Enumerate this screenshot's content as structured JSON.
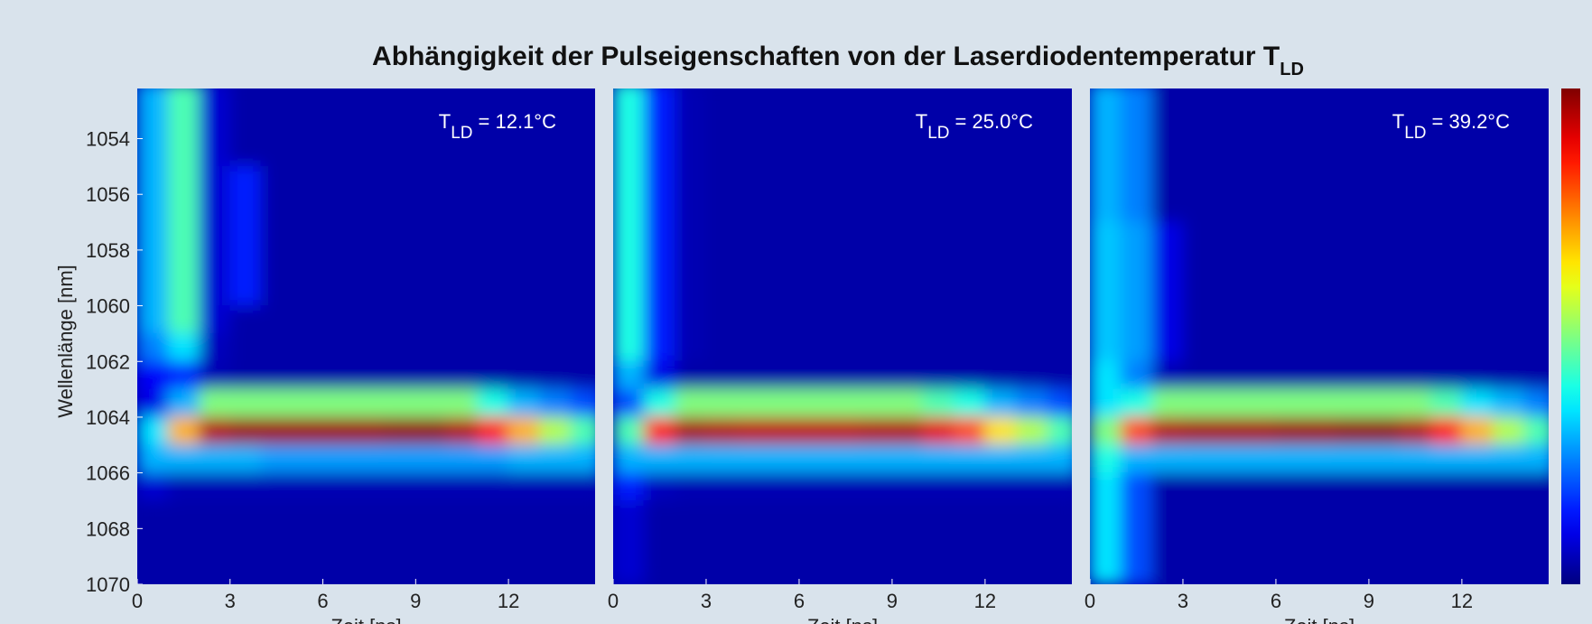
{
  "chart_data": {
    "type": "heatmap",
    "title": "Abhängigkeit der Pulseigenschaften von der Laserdiodentemperatur T",
    "title_subscript": "LD",
    "y_label": "Wellenlänge [nm]",
    "ylim": [
      1052.2,
      1070
    ],
    "yticks": [
      1054,
      1056,
      1058,
      1060,
      1062,
      1064,
      1066,
      1068,
      1070
    ],
    "xlim": [
      0,
      14.8
    ],
    "xticks": [
      0,
      3,
      6,
      9,
      12
    ],
    "xbins": [
      0,
      1,
      2,
      3,
      4,
      5,
      6,
      7,
      8,
      9,
      10,
      11,
      12,
      13,
      14,
      15
    ],
    "ybins": [
      1052,
      1053,
      1054,
      1055,
      1056,
      1057,
      1058,
      1059,
      1060,
      1061,
      1062,
      1063,
      1064,
      1065,
      1066,
      1067,
      1068,
      1069,
      1070
    ],
    "colormap": "jet",
    "zlim": [
      0,
      1
    ],
    "panels": [
      {
        "annotation_symbol": "T",
        "annotation_subscript": "LD",
        "annotation": "= 12.1°C",
        "x_label": "Zeit [ns]",
        "z": [
          [
            0.3,
            0.45,
            0.08,
            0.04,
            0.04,
            0.04,
            0.04,
            0.04,
            0.04,
            0.04,
            0.04,
            0.04,
            0.04,
            0.04,
            0.04
          ],
          [
            0.3,
            0.45,
            0.08,
            0.04,
            0.04,
            0.04,
            0.04,
            0.04,
            0.04,
            0.04,
            0.04,
            0.04,
            0.04,
            0.04,
            0.04
          ],
          [
            0.3,
            0.45,
            0.08,
            0.04,
            0.04,
            0.04,
            0.04,
            0.04,
            0.04,
            0.04,
            0.04,
            0.04,
            0.04,
            0.04,
            0.04
          ],
          [
            0.3,
            0.45,
            0.08,
            0.15,
            0.04,
            0.04,
            0.04,
            0.04,
            0.04,
            0.04,
            0.04,
            0.04,
            0.04,
            0.04,
            0.04
          ],
          [
            0.3,
            0.45,
            0.08,
            0.15,
            0.04,
            0.04,
            0.04,
            0.04,
            0.04,
            0.04,
            0.04,
            0.04,
            0.04,
            0.04,
            0.04
          ],
          [
            0.3,
            0.45,
            0.08,
            0.15,
            0.04,
            0.04,
            0.04,
            0.04,
            0.04,
            0.04,
            0.04,
            0.04,
            0.04,
            0.04,
            0.04
          ],
          [
            0.3,
            0.45,
            0.08,
            0.15,
            0.04,
            0.04,
            0.04,
            0.04,
            0.04,
            0.04,
            0.04,
            0.04,
            0.04,
            0.04,
            0.04
          ],
          [
            0.3,
            0.45,
            0.08,
            0.15,
            0.04,
            0.04,
            0.04,
            0.04,
            0.04,
            0.04,
            0.04,
            0.04,
            0.04,
            0.04,
            0.04
          ],
          [
            0.3,
            0.45,
            0.08,
            0.04,
            0.04,
            0.04,
            0.04,
            0.04,
            0.04,
            0.04,
            0.04,
            0.04,
            0.04,
            0.04,
            0.04
          ],
          [
            0.25,
            0.35,
            0.06,
            0.04,
            0.04,
            0.04,
            0.04,
            0.04,
            0.04,
            0.04,
            0.04,
            0.04,
            0.04,
            0.04,
            0.04
          ],
          [
            0.12,
            0.15,
            0.05,
            0.04,
            0.04,
            0.04,
            0.04,
            0.04,
            0.04,
            0.04,
            0.04,
            0.04,
            0.04,
            0.04,
            0.04
          ],
          [
            0.1,
            0.3,
            0.5,
            0.5,
            0.5,
            0.5,
            0.5,
            0.5,
            0.5,
            0.5,
            0.5,
            0.4,
            0.3,
            0.25,
            0.2
          ],
          [
            0.35,
            0.7,
            0.95,
            0.97,
            0.97,
            0.97,
            0.97,
            0.97,
            0.98,
            0.98,
            0.95,
            0.85,
            0.7,
            0.55,
            0.45
          ],
          [
            0.3,
            0.3,
            0.3,
            0.3,
            0.28,
            0.28,
            0.28,
            0.28,
            0.28,
            0.28,
            0.28,
            0.28,
            0.3,
            0.3,
            0.3
          ],
          [
            0.08,
            0.05,
            0.05,
            0.05,
            0.05,
            0.05,
            0.05,
            0.05,
            0.05,
            0.05,
            0.05,
            0.05,
            0.05,
            0.05,
            0.05
          ],
          [
            0.04,
            0.04,
            0.04,
            0.04,
            0.04,
            0.04,
            0.04,
            0.04,
            0.04,
            0.04,
            0.04,
            0.04,
            0.04,
            0.04,
            0.04
          ],
          [
            0.04,
            0.04,
            0.04,
            0.04,
            0.04,
            0.04,
            0.04,
            0.04,
            0.04,
            0.04,
            0.04,
            0.04,
            0.04,
            0.04,
            0.04
          ],
          [
            0.04,
            0.04,
            0.04,
            0.04,
            0.04,
            0.04,
            0.04,
            0.04,
            0.04,
            0.04,
            0.04,
            0.04,
            0.04,
            0.04,
            0.04
          ]
        ]
      },
      {
        "annotation_symbol": "T",
        "annotation_subscript": "LD",
        "annotation": "= 25.0°C",
        "x_label": "Zeit [ns]",
        "z": [
          [
            0.4,
            0.15,
            0.05,
            0.04,
            0.04,
            0.04,
            0.04,
            0.04,
            0.04,
            0.04,
            0.04,
            0.04,
            0.04,
            0.04,
            0.04
          ],
          [
            0.4,
            0.15,
            0.05,
            0.04,
            0.04,
            0.04,
            0.04,
            0.04,
            0.04,
            0.04,
            0.04,
            0.04,
            0.04,
            0.04,
            0.04
          ],
          [
            0.4,
            0.15,
            0.05,
            0.04,
            0.04,
            0.04,
            0.04,
            0.04,
            0.04,
            0.04,
            0.04,
            0.04,
            0.04,
            0.04,
            0.04
          ],
          [
            0.4,
            0.15,
            0.05,
            0.04,
            0.04,
            0.04,
            0.04,
            0.04,
            0.04,
            0.04,
            0.04,
            0.04,
            0.04,
            0.04,
            0.04
          ],
          [
            0.4,
            0.15,
            0.05,
            0.04,
            0.04,
            0.04,
            0.04,
            0.04,
            0.04,
            0.04,
            0.04,
            0.04,
            0.04,
            0.04,
            0.04
          ],
          [
            0.4,
            0.15,
            0.05,
            0.04,
            0.04,
            0.04,
            0.04,
            0.04,
            0.04,
            0.04,
            0.04,
            0.04,
            0.04,
            0.04,
            0.04
          ],
          [
            0.4,
            0.15,
            0.05,
            0.04,
            0.04,
            0.04,
            0.04,
            0.04,
            0.04,
            0.04,
            0.04,
            0.04,
            0.04,
            0.04,
            0.04
          ],
          [
            0.4,
            0.15,
            0.05,
            0.04,
            0.04,
            0.04,
            0.04,
            0.04,
            0.04,
            0.04,
            0.04,
            0.04,
            0.04,
            0.04,
            0.04
          ],
          [
            0.4,
            0.15,
            0.05,
            0.04,
            0.04,
            0.04,
            0.04,
            0.04,
            0.04,
            0.04,
            0.04,
            0.04,
            0.04,
            0.04,
            0.04
          ],
          [
            0.4,
            0.15,
            0.05,
            0.04,
            0.04,
            0.04,
            0.04,
            0.04,
            0.04,
            0.04,
            0.04,
            0.04,
            0.04,
            0.04,
            0.04
          ],
          [
            0.3,
            0.1,
            0.04,
            0.04,
            0.04,
            0.04,
            0.04,
            0.04,
            0.04,
            0.04,
            0.04,
            0.04,
            0.04,
            0.04,
            0.04
          ],
          [
            0.2,
            0.4,
            0.5,
            0.5,
            0.5,
            0.5,
            0.5,
            0.5,
            0.5,
            0.5,
            0.45,
            0.4,
            0.3,
            0.25,
            0.2
          ],
          [
            0.45,
            0.85,
            0.96,
            0.95,
            0.94,
            0.94,
            0.94,
            0.94,
            0.95,
            0.95,
            0.9,
            0.8,
            0.65,
            0.55,
            0.45
          ],
          [
            0.3,
            0.3,
            0.3,
            0.3,
            0.3,
            0.3,
            0.3,
            0.3,
            0.3,
            0.3,
            0.3,
            0.3,
            0.3,
            0.3,
            0.3
          ],
          [
            0.15,
            0.06,
            0.05,
            0.05,
            0.05,
            0.05,
            0.05,
            0.05,
            0.05,
            0.05,
            0.05,
            0.05,
            0.05,
            0.05,
            0.05
          ],
          [
            0.08,
            0.04,
            0.04,
            0.04,
            0.04,
            0.04,
            0.04,
            0.04,
            0.04,
            0.04,
            0.04,
            0.04,
            0.04,
            0.04,
            0.04
          ],
          [
            0.08,
            0.04,
            0.04,
            0.04,
            0.04,
            0.04,
            0.04,
            0.04,
            0.04,
            0.04,
            0.04,
            0.04,
            0.04,
            0.04,
            0.04
          ],
          [
            0.08,
            0.04,
            0.04,
            0.04,
            0.04,
            0.04,
            0.04,
            0.04,
            0.04,
            0.04,
            0.04,
            0.04,
            0.04,
            0.04,
            0.04
          ]
        ]
      },
      {
        "annotation_symbol": "T",
        "annotation_subscript": "LD",
        "annotation": "= 39.2°C",
        "x_label": "Zeit [ns]",
        "z": [
          [
            0.3,
            0.25,
            0.04,
            0.04,
            0.04,
            0.04,
            0.04,
            0.04,
            0.04,
            0.04,
            0.04,
            0.04,
            0.04,
            0.04,
            0.04
          ],
          [
            0.3,
            0.25,
            0.04,
            0.04,
            0.04,
            0.04,
            0.04,
            0.04,
            0.04,
            0.04,
            0.04,
            0.04,
            0.04,
            0.04,
            0.04
          ],
          [
            0.3,
            0.25,
            0.04,
            0.04,
            0.04,
            0.04,
            0.04,
            0.04,
            0.04,
            0.04,
            0.04,
            0.04,
            0.04,
            0.04,
            0.04
          ],
          [
            0.3,
            0.25,
            0.04,
            0.04,
            0.04,
            0.04,
            0.04,
            0.04,
            0.04,
            0.04,
            0.04,
            0.04,
            0.04,
            0.04,
            0.04
          ],
          [
            0.3,
            0.25,
            0.04,
            0.04,
            0.04,
            0.04,
            0.04,
            0.04,
            0.04,
            0.04,
            0.04,
            0.04,
            0.04,
            0.04,
            0.04
          ],
          [
            0.32,
            0.28,
            0.1,
            0.04,
            0.04,
            0.04,
            0.04,
            0.04,
            0.04,
            0.04,
            0.04,
            0.04,
            0.04,
            0.04,
            0.04
          ],
          [
            0.32,
            0.28,
            0.1,
            0.04,
            0.04,
            0.04,
            0.04,
            0.04,
            0.04,
            0.04,
            0.04,
            0.04,
            0.04,
            0.04,
            0.04
          ],
          [
            0.32,
            0.28,
            0.1,
            0.04,
            0.04,
            0.04,
            0.04,
            0.04,
            0.04,
            0.04,
            0.04,
            0.04,
            0.04,
            0.04,
            0.04
          ],
          [
            0.32,
            0.28,
            0.1,
            0.04,
            0.04,
            0.04,
            0.04,
            0.04,
            0.04,
            0.04,
            0.04,
            0.04,
            0.04,
            0.04,
            0.04
          ],
          [
            0.32,
            0.28,
            0.1,
            0.04,
            0.04,
            0.04,
            0.04,
            0.04,
            0.04,
            0.04,
            0.04,
            0.04,
            0.04,
            0.04,
            0.04
          ],
          [
            0.35,
            0.25,
            0.05,
            0.04,
            0.04,
            0.04,
            0.04,
            0.04,
            0.04,
            0.04,
            0.04,
            0.04,
            0.04,
            0.04,
            0.04
          ],
          [
            0.35,
            0.4,
            0.5,
            0.5,
            0.5,
            0.5,
            0.5,
            0.5,
            0.5,
            0.5,
            0.5,
            0.45,
            0.35,
            0.3,
            0.25
          ],
          [
            0.5,
            0.8,
            0.95,
            0.96,
            0.96,
            0.96,
            0.97,
            0.97,
            0.98,
            0.98,
            0.95,
            0.85,
            0.7,
            0.55,
            0.45
          ],
          [
            0.4,
            0.3,
            0.3,
            0.3,
            0.3,
            0.3,
            0.3,
            0.3,
            0.3,
            0.3,
            0.3,
            0.3,
            0.3,
            0.3,
            0.3
          ],
          [
            0.35,
            0.2,
            0.04,
            0.04,
            0.04,
            0.04,
            0.04,
            0.04,
            0.04,
            0.04,
            0.04,
            0.04,
            0.04,
            0.04,
            0.04
          ],
          [
            0.35,
            0.2,
            0.04,
            0.04,
            0.04,
            0.04,
            0.04,
            0.04,
            0.04,
            0.04,
            0.04,
            0.04,
            0.04,
            0.04,
            0.04
          ],
          [
            0.35,
            0.2,
            0.04,
            0.04,
            0.04,
            0.04,
            0.04,
            0.04,
            0.04,
            0.04,
            0.04,
            0.04,
            0.04,
            0.04,
            0.04
          ],
          [
            0.35,
            0.2,
            0.04,
            0.04,
            0.04,
            0.04,
            0.04,
            0.04,
            0.04,
            0.04,
            0.04,
            0.04,
            0.04,
            0.04,
            0.04
          ]
        ]
      }
    ]
  }
}
